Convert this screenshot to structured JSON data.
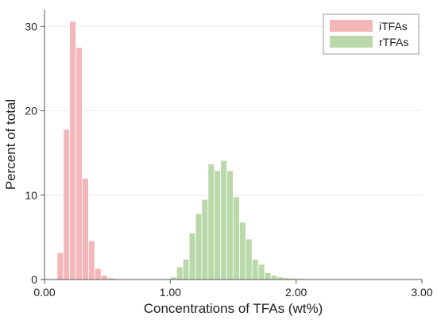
{
  "chart_data": {
    "type": "bar",
    "xlabel": "Concentrations of TFAs (wt%)",
    "ylabel": "Percent of total",
    "xlim": [
      0.0,
      3.0
    ],
    "ylim": [
      0,
      32
    ],
    "grid": true,
    "legend_position": "top-right",
    "x_ticks": [
      "0.00",
      "1.00",
      "2.00",
      "3.00"
    ],
    "y_ticks": [
      "0",
      "10",
      "20",
      "30"
    ],
    "bin_width": 0.05,
    "series": [
      {
        "name": "iTFAs",
        "color": "#f4b7b9",
        "bins": [
          {
            "x": 0.125,
            "y": 3.2
          },
          {
            "x": 0.175,
            "y": 17.8
          },
          {
            "x": 0.225,
            "y": 30.6
          },
          {
            "x": 0.275,
            "y": 27.5
          },
          {
            "x": 0.325,
            "y": 12.0
          },
          {
            "x": 0.375,
            "y": 4.6
          },
          {
            "x": 0.425,
            "y": 1.3
          },
          {
            "x": 0.475,
            "y": 0.5
          },
          {
            "x": 0.525,
            "y": 0.2
          },
          {
            "x": 0.575,
            "y": 0.1
          }
        ]
      },
      {
        "name": "rTFAs",
        "color": "#bad9aa",
        "bins": [
          {
            "x": 0.975,
            "y": 0.1
          },
          {
            "x": 1.025,
            "y": 0.3
          },
          {
            "x": 1.075,
            "y": 1.5
          },
          {
            "x": 1.125,
            "y": 2.4
          },
          {
            "x": 1.175,
            "y": 5.5
          },
          {
            "x": 1.225,
            "y": 7.8
          },
          {
            "x": 1.275,
            "y": 9.5
          },
          {
            "x": 1.325,
            "y": 13.7
          },
          {
            "x": 1.375,
            "y": 12.9
          },
          {
            "x": 1.425,
            "y": 14.1
          },
          {
            "x": 1.475,
            "y": 12.9
          },
          {
            "x": 1.525,
            "y": 9.8
          },
          {
            "x": 1.575,
            "y": 6.8
          },
          {
            "x": 1.625,
            "y": 4.8
          },
          {
            "x": 1.675,
            "y": 2.4
          },
          {
            "x": 1.725,
            "y": 1.8
          },
          {
            "x": 1.775,
            "y": 0.8
          },
          {
            "x": 1.825,
            "y": 0.5
          },
          {
            "x": 1.875,
            "y": 0.3
          },
          {
            "x": 1.925,
            "y": 0.2
          },
          {
            "x": 1.975,
            "y": 0.15
          },
          {
            "x": 2.025,
            "y": 0.1
          },
          {
            "x": 2.075,
            "y": 0.1
          },
          {
            "x": 2.125,
            "y": 0.05
          },
          {
            "x": 2.175,
            "y": 0.05
          },
          {
            "x": 2.225,
            "y": 0.05
          },
          {
            "x": 2.275,
            "y": 0.05
          }
        ]
      }
    ]
  }
}
